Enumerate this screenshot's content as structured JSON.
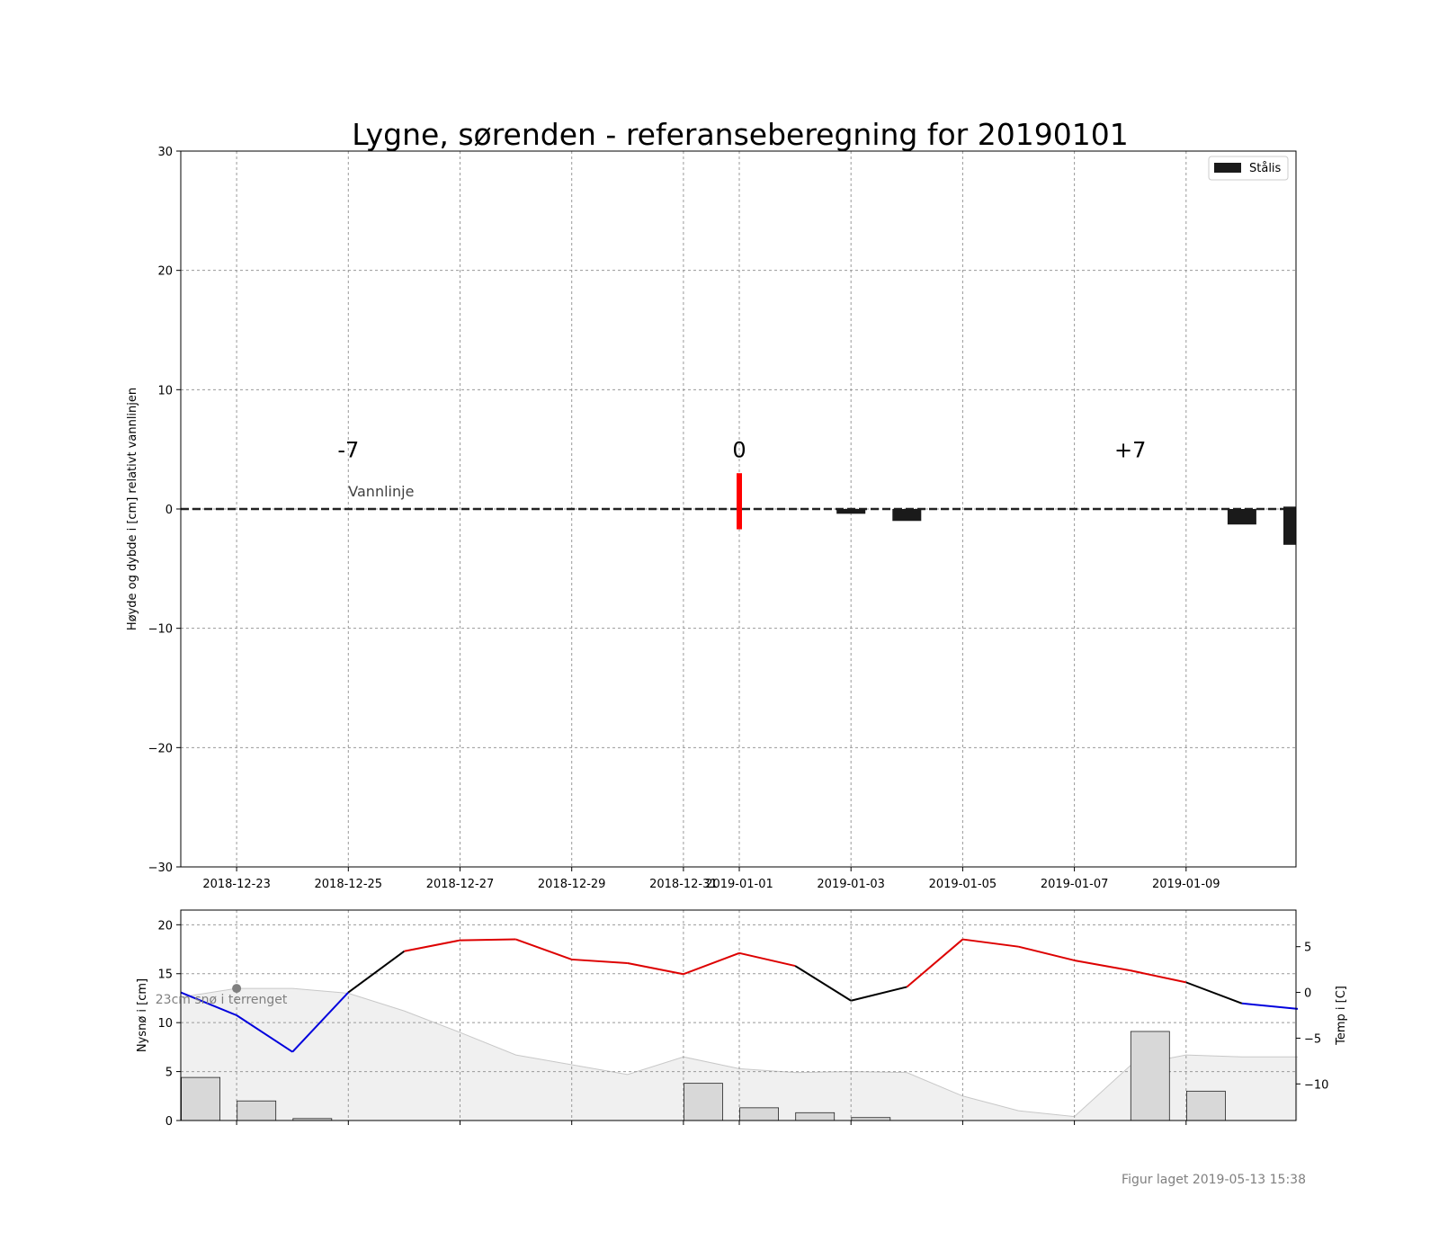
{
  "figure": {
    "title": "Lygne, sørenden - referanseberegning for 20190101",
    "footer": "Figur laget 2019-05-13 15:38"
  },
  "chart_data": [
    {
      "type": "bar",
      "ylabel": "Høyde og dybde i [cm] relativt vannlinjen",
      "ylim": [
        -30,
        30
      ],
      "yticks": [
        30,
        20,
        10,
        0,
        -10,
        -20,
        -30
      ],
      "ytick_labels": [
        "30",
        "20",
        "10",
        "0",
        "−10",
        "−20",
        "−30"
      ],
      "xlim": [
        "2018-12-22",
        "2019-01-11"
      ],
      "xticks": [
        "2018-12-23",
        "2018-12-25",
        "2018-12-27",
        "2018-12-29",
        "2018-12-31",
        "2019-01-01",
        "2019-01-03",
        "2019-01-05",
        "2019-01-07",
        "2019-01-09"
      ],
      "grid": true,
      "legend": {
        "placement": "top-right",
        "entries": [
          {
            "label": "Stålis",
            "color": "#1a1a1a"
          }
        ]
      },
      "day_markers": [
        {
          "label": "-7",
          "date": "2018-12-25"
        },
        {
          "label": "0",
          "date": "2019-01-01"
        },
        {
          "label": "+7",
          "date": "2019-01-08"
        }
      ],
      "waterline": {
        "label": "Vannlinje",
        "label_date": "2018-12-25",
        "value": 0
      },
      "reference_marker": {
        "date": "2019-01-01",
        "top": 3,
        "bottom": -1.7,
        "color": "#ff0000"
      },
      "series": [
        {
          "name": "Stålis",
          "color": "#1a1a1a",
          "bars": [
            {
              "date": "2019-01-03",
              "top": 0,
              "bottom": -0.4
            },
            {
              "date": "2019-01-04",
              "top": 0,
              "bottom": -1.0
            },
            {
              "date": "2019-01-10",
              "top": 0,
              "bottom": -1.3
            },
            {
              "date": "2019-01-11",
              "top": 0.2,
              "bottom": -3.0
            }
          ]
        }
      ]
    },
    {
      "type": "bar",
      "ylabel": "Nysnø i [cm]",
      "ylabel_right": "Temp i [C]",
      "ylim": [
        0,
        21.5
      ],
      "yticks": [
        0,
        5,
        10,
        15,
        20
      ],
      "ytick_labels": [
        "0",
        "5",
        "10",
        "15",
        "20"
      ],
      "ylim_right": [
        -14,
        9
      ],
      "yticks_right": [
        5,
        0,
        -5,
        -10
      ],
      "ytick_labels_right": [
        "5",
        "0",
        "−5",
        "−10"
      ],
      "grid": true,
      "annotation": {
        "text": "23cm snø i terrenget",
        "date": "2018-12-23",
        "value": 13.5
      },
      "snow_depth": {
        "color": "#f0f0f0",
        "dates": [
          "2018-12-22",
          "2018-12-23",
          "2018-12-24",
          "2018-12-25",
          "2018-12-26",
          "2018-12-27",
          "2018-12-28",
          "2018-12-29",
          "2018-12-30",
          "2018-12-31",
          "2019-01-01",
          "2019-01-02",
          "2019-01-03",
          "2019-01-04",
          "2019-01-05",
          "2019-01-06",
          "2019-01-07",
          "2019-01-08",
          "2019-01-09",
          "2019-01-10",
          "2019-01-11"
        ],
        "values": [
          12.6,
          13.5,
          13.5,
          13.0,
          11.2,
          9.0,
          6.7,
          5.7,
          4.7,
          6.5,
          5.3,
          4.9,
          5.0,
          4.9,
          2.5,
          1.0,
          0.4,
          5.6,
          6.7,
          6.5,
          6.5
        ]
      },
      "new_snow": {
        "dates": [
          "2018-12-22",
          "2018-12-23",
          "2018-12-24",
          "2018-12-31",
          "2019-01-01",
          "2019-01-02",
          "2019-01-03",
          "2019-01-08",
          "2019-01-09"
        ],
        "values": [
          4.4,
          2.0,
          0.2,
          3.8,
          1.3,
          0.8,
          0.3,
          9.1,
          3.0
        ]
      },
      "temperature": {
        "dates": [
          "2018-12-22",
          "2018-12-23",
          "2018-12-24",
          "2018-12-25",
          "2018-12-26",
          "2018-12-27",
          "2018-12-28",
          "2018-12-29",
          "2018-12-30",
          "2018-12-31",
          "2019-01-01",
          "2019-01-02",
          "2019-01-03",
          "2019-01-04",
          "2019-01-05",
          "2019-01-06",
          "2019-01-07",
          "2019-01-08",
          "2019-01-09",
          "2019-01-10",
          "2019-01-11"
        ],
        "values": [
          0.0,
          -2.5,
          -6.5,
          0.0,
          4.5,
          5.7,
          5.8,
          3.6,
          3.2,
          2.0,
          4.3,
          2.9,
          -0.9,
          0.6,
          5.8,
          5.0,
          3.5,
          2.4,
          1.1,
          -1.2,
          -1.8
        ],
        "colors": {
          "above_zero": "#dd0000",
          "crossing": "#000000",
          "below_zero": "#0000dd"
        }
      }
    }
  ]
}
